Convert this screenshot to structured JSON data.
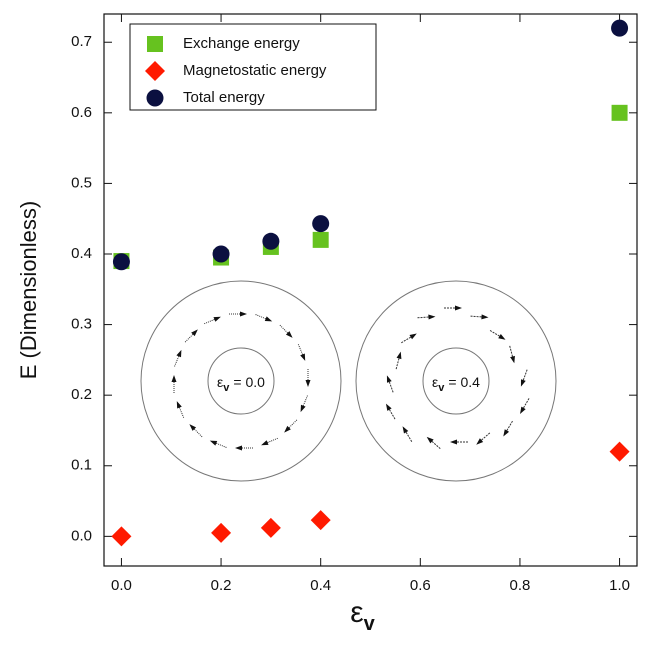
{
  "chart_data": {
    "type": "scatter",
    "x": [
      0.0,
      0.2,
      0.3,
      0.4,
      1.0
    ],
    "series": [
      {
        "name": "Exchange energy",
        "color": "#66c21f",
        "marker": "square",
        "values": [
          0.39,
          0.395,
          0.41,
          0.42,
          0.6
        ]
      },
      {
        "name": "Magnetostatic energy",
        "color": "#ff1a00",
        "marker": "diamond",
        "values": [
          0.0,
          0.005,
          0.012,
          0.023,
          0.12
        ]
      },
      {
        "name": "Total energy",
        "color": "#0b1040",
        "marker": "circle",
        "values": [
          0.389,
          0.4,
          0.418,
          0.443,
          0.72
        ]
      }
    ],
    "x_label": {
      "symbol": "ε",
      "subscript": "v"
    },
    "y_label": "E (Dimensionless)",
    "xlim": [
      -0.035,
      1.035
    ],
    "ylim": [
      -0.042,
      0.74
    ],
    "xticks": [
      {
        "value": 0,
        "label": "0.0"
      },
      {
        "value": 0.2,
        "label": "0.2"
      },
      {
        "value": 0.4,
        "label": "0.4"
      },
      {
        "value": 0.6,
        "label": "0.6"
      },
      {
        "value": 0.8,
        "label": "0.8"
      },
      {
        "value": 1,
        "label": "1.0"
      }
    ],
    "yticks": [
      {
        "value": 0,
        "label": "0.0"
      },
      {
        "value": 0.1,
        "label": "0.1"
      },
      {
        "value": 0.2,
        "label": "0.2"
      },
      {
        "value": 0.3,
        "label": "0.3"
      },
      {
        "value": 0.4,
        "label": "0.4"
      },
      {
        "value": 0.5,
        "label": "0.5"
      },
      {
        "value": 0.6,
        "label": "0.6"
      },
      {
        "value": 0.7,
        "label": "0.7"
      }
    ],
    "legend": "top-left",
    "annotations": [
      {
        "symbol": "ε",
        "subscript": "v",
        "text": "= 0.0"
      },
      {
        "symbol": "ε",
        "subscript": "v",
        "text": "= 0.4"
      }
    ]
  }
}
